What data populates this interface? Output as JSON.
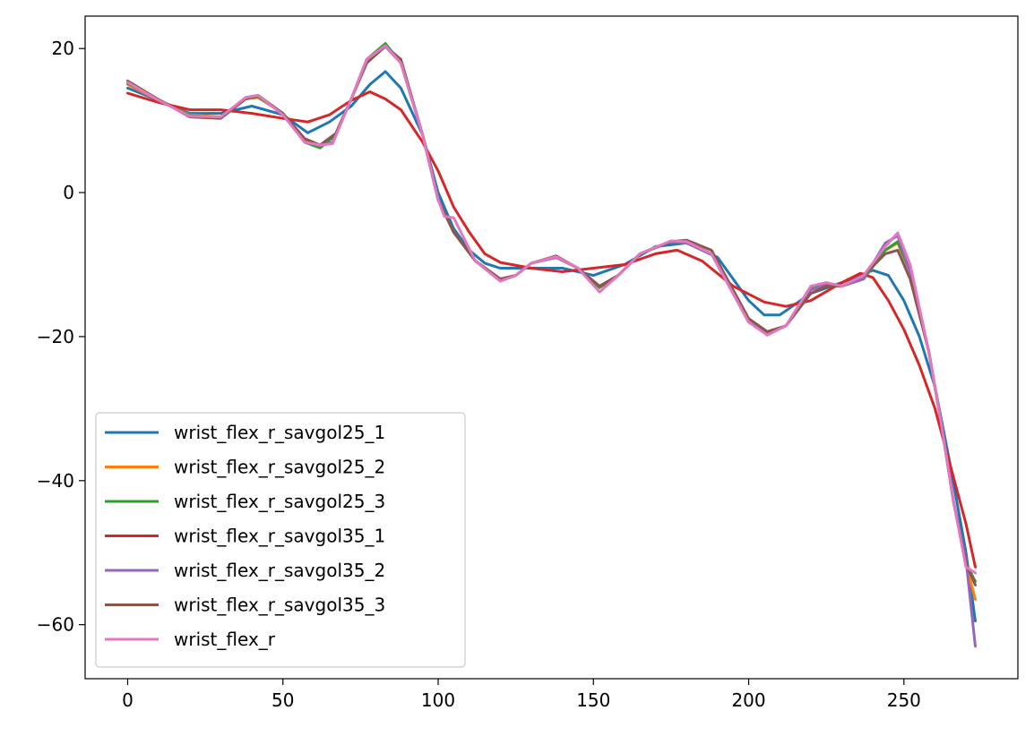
{
  "chart_data": {
    "type": "line",
    "title": "",
    "xlabel": "",
    "ylabel": "",
    "xlim": [
      -13.7,
      286.7
    ],
    "ylim": [
      -67.5,
      24.5
    ],
    "xticks": [
      0,
      50,
      100,
      150,
      200,
      250
    ],
    "yticks": [
      20,
      0,
      -20,
      -40,
      -60
    ],
    "ytick_labels": [
      "20",
      "0",
      "−20",
      "−40",
      "−60"
    ],
    "legend_position": "lower-left",
    "grid": false,
    "series": [
      {
        "name": "wrist_flex_r_savgol25_1",
        "color": "#1f77b4",
        "points": [
          [
            0,
            14.5
          ],
          [
            10,
            12.8
          ],
          [
            20,
            11.0
          ],
          [
            30,
            11.0
          ],
          [
            40,
            12.0
          ],
          [
            50,
            10.8
          ],
          [
            58,
            8.3
          ],
          [
            65,
            9.8
          ],
          [
            72,
            12.0
          ],
          [
            78,
            15.0
          ],
          [
            83,
            16.8
          ],
          [
            88,
            14.5
          ],
          [
            95,
            8.0
          ],
          [
            100,
            0
          ],
          [
            105,
            -5.0
          ],
          [
            110,
            -8.0
          ],
          [
            115,
            -9.8
          ],
          [
            120,
            -10.5
          ],
          [
            130,
            -10.5
          ],
          [
            140,
            -10.5
          ],
          [
            150,
            -11.5
          ],
          [
            160,
            -10.0
          ],
          [
            170,
            -7.5
          ],
          [
            180,
            -7.0
          ],
          [
            190,
            -9.0
          ],
          [
            200,
            -15.0
          ],
          [
            205,
            -17.0
          ],
          [
            210,
            -17.0
          ],
          [
            220,
            -14.0
          ],
          [
            230,
            -12.5
          ],
          [
            240,
            -10.8
          ],
          [
            245,
            -11.5
          ],
          [
            250,
            -15.0
          ],
          [
            255,
            -20.0
          ],
          [
            260,
            -27.0
          ],
          [
            265,
            -38.0
          ],
          [
            270,
            -50.0
          ],
          [
            273,
            -59.5
          ]
        ]
      },
      {
        "name": "wrist_flex_r_savgol25_2",
        "color": "#ff7f0e",
        "points": [
          [
            0,
            15.0
          ],
          [
            10,
            12.8
          ],
          [
            20,
            10.8
          ],
          [
            30,
            10.5
          ],
          [
            38,
            13.0
          ],
          [
            42,
            13.2
          ],
          [
            50,
            11.0
          ],
          [
            57,
            7.0
          ],
          [
            62,
            6.4
          ],
          [
            67,
            8.0
          ],
          [
            72,
            13.0
          ],
          [
            77,
            18.0
          ],
          [
            83,
            20.5
          ],
          [
            88,
            18.0
          ],
          [
            95,
            8.0
          ],
          [
            100,
            -1.0
          ],
          [
            105,
            -5.5
          ],
          [
            112,
            -9.5
          ],
          [
            120,
            -12.0
          ],
          [
            125,
            -11.5
          ],
          [
            130,
            -9.8
          ],
          [
            138,
            -9.0
          ],
          [
            145,
            -10.5
          ],
          [
            152,
            -13.0
          ],
          [
            158,
            -11.5
          ],
          [
            165,
            -8.5
          ],
          [
            175,
            -6.8
          ],
          [
            180,
            -7.0
          ],
          [
            188,
            -8.5
          ],
          [
            195,
            -14.0
          ],
          [
            200,
            -18.0
          ],
          [
            206,
            -19.5
          ],
          [
            212,
            -18.5
          ],
          [
            220,
            -13.5
          ],
          [
            225,
            -12.8
          ],
          [
            230,
            -13.0
          ],
          [
            237,
            -12.0
          ],
          [
            244,
            -8.0
          ],
          [
            248,
            -7.0
          ],
          [
            252,
            -11.0
          ],
          [
            258,
            -22.0
          ],
          [
            262,
            -32.0
          ],
          [
            266,
            -43.0
          ],
          [
            270,
            -51.5
          ],
          [
            273,
            -56.5
          ]
        ]
      },
      {
        "name": "wrist_flex_r_savgol25_3",
        "color": "#2ca02c",
        "points": [
          [
            0,
            15.2
          ],
          [
            10,
            12.9
          ],
          [
            20,
            10.7
          ],
          [
            30,
            10.4
          ],
          [
            38,
            13.1
          ],
          [
            42,
            13.3
          ],
          [
            50,
            11.0
          ],
          [
            57,
            7.0
          ],
          [
            62,
            6.2
          ],
          [
            67,
            8.0
          ],
          [
            72,
            13.0
          ],
          [
            77,
            18.5
          ],
          [
            83,
            20.7
          ],
          [
            88,
            18.0
          ],
          [
            95,
            8.0
          ],
          [
            100,
            -1.0
          ],
          [
            105,
            -5.5
          ],
          [
            112,
            -9.5
          ],
          [
            120,
            -12.3
          ],
          [
            125,
            -11.5
          ],
          [
            130,
            -9.8
          ],
          [
            138,
            -9.0
          ],
          [
            145,
            -10.5
          ],
          [
            152,
            -13.2
          ],
          [
            158,
            -11.5
          ],
          [
            165,
            -8.5
          ],
          [
            175,
            -6.8
          ],
          [
            180,
            -7.0
          ],
          [
            188,
            -8.5
          ],
          [
            195,
            -14.0
          ],
          [
            200,
            -18.0
          ],
          [
            206,
            -19.7
          ],
          [
            212,
            -18.5
          ],
          [
            220,
            -13.3
          ],
          [
            225,
            -12.8
          ],
          [
            230,
            -13.0
          ],
          [
            237,
            -12.0
          ],
          [
            244,
            -8.0
          ],
          [
            248,
            -6.8
          ],
          [
            252,
            -11.0
          ],
          [
            258,
            -22.0
          ],
          [
            262,
            -32.0
          ],
          [
            266,
            -43.0
          ],
          [
            270,
            -51.5
          ],
          [
            273,
            -54.0
          ]
        ]
      },
      {
        "name": "wrist_flex_r_savgol35_1",
        "color": "#d62728",
        "points": [
          [
            0,
            13.8
          ],
          [
            10,
            12.5
          ],
          [
            20,
            11.5
          ],
          [
            30,
            11.5
          ],
          [
            40,
            11.0
          ],
          [
            50,
            10.3
          ],
          [
            58,
            9.8
          ],
          [
            65,
            10.8
          ],
          [
            72,
            12.8
          ],
          [
            78,
            14.0
          ],
          [
            83,
            13.0
          ],
          [
            88,
            11.5
          ],
          [
            95,
            7.0
          ],
          [
            100,
            3.0
          ],
          [
            105,
            -2.0
          ],
          [
            110,
            -5.5
          ],
          [
            115,
            -8.5
          ],
          [
            120,
            -9.7
          ],
          [
            130,
            -10.5
          ],
          [
            140,
            -11.0
          ],
          [
            150,
            -10.5
          ],
          [
            160,
            -10.0
          ],
          [
            170,
            -8.5
          ],
          [
            177,
            -8.0
          ],
          [
            185,
            -9.5
          ],
          [
            195,
            -13.0
          ],
          [
            205,
            -15.2
          ],
          [
            212,
            -15.8
          ],
          [
            220,
            -15.0
          ],
          [
            230,
            -12.5
          ],
          [
            236,
            -11.2
          ],
          [
            240,
            -11.8
          ],
          [
            245,
            -15.0
          ],
          [
            250,
            -19.0
          ],
          [
            255,
            -24.0
          ],
          [
            260,
            -30.0
          ],
          [
            265,
            -38.0
          ],
          [
            270,
            -46.0
          ],
          [
            273,
            -52.0
          ]
        ]
      },
      {
        "name": "wrist_flex_r_savgol35_2",
        "color": "#9467bd",
        "points": [
          [
            0,
            15.3
          ],
          [
            10,
            12.8
          ],
          [
            20,
            10.6
          ],
          [
            30,
            10.4
          ],
          [
            38,
            13.2
          ],
          [
            42,
            13.5
          ],
          [
            50,
            10.8
          ],
          [
            57,
            7.2
          ],
          [
            62,
            6.5
          ],
          [
            66,
            7.0
          ],
          [
            72,
            13.0
          ],
          [
            77,
            18.5
          ],
          [
            83,
            20.3
          ],
          [
            88,
            18.0
          ],
          [
            95,
            8.0
          ],
          [
            100,
            -1.0
          ],
          [
            105,
            -5.5
          ],
          [
            112,
            -9.5
          ],
          [
            120,
            -12.0
          ],
          [
            125,
            -11.5
          ],
          [
            130,
            -9.8
          ],
          [
            138,
            -9.0
          ],
          [
            145,
            -10.5
          ],
          [
            152,
            -13.0
          ],
          [
            158,
            -11.5
          ],
          [
            165,
            -8.5
          ],
          [
            175,
            -6.8
          ],
          [
            180,
            -7.0
          ],
          [
            188,
            -8.5
          ],
          [
            195,
            -14.0
          ],
          [
            200,
            -18.0
          ],
          [
            206,
            -19.5
          ],
          [
            212,
            -18.5
          ],
          [
            220,
            -13.5
          ],
          [
            225,
            -12.8
          ],
          [
            230,
            -13.0
          ],
          [
            237,
            -12.0
          ],
          [
            244,
            -7.0
          ],
          [
            248,
            -6.0
          ],
          [
            252,
            -11.0
          ],
          [
            258,
            -22.0
          ],
          [
            262,
            -32.0
          ],
          [
            266,
            -43.0
          ],
          [
            270,
            -51.0
          ],
          [
            273,
            -63.0
          ]
        ]
      },
      {
        "name": "wrist_flex_r_savgol35_3",
        "color": "#8c564b",
        "points": [
          [
            0,
            15.5
          ],
          [
            10,
            12.9
          ],
          [
            20,
            10.5
          ],
          [
            30,
            10.3
          ],
          [
            38,
            13.0
          ],
          [
            42,
            13.5
          ],
          [
            50,
            11.0
          ],
          [
            57,
            7.5
          ],
          [
            62,
            6.6
          ],
          [
            67,
            8.2
          ],
          [
            72,
            13.0
          ],
          [
            77,
            18.0
          ],
          [
            83,
            20.3
          ],
          [
            88,
            18.5
          ],
          [
            95,
            8.0
          ],
          [
            100,
            -1.0
          ],
          [
            105,
            -5.5
          ],
          [
            112,
            -9.5
          ],
          [
            120,
            -12.0
          ],
          [
            125,
            -11.5
          ],
          [
            130,
            -9.8
          ],
          [
            138,
            -8.8
          ],
          [
            145,
            -10.5
          ],
          [
            152,
            -13.0
          ],
          [
            158,
            -11.5
          ],
          [
            165,
            -8.5
          ],
          [
            175,
            -6.8
          ],
          [
            180,
            -6.6
          ],
          [
            188,
            -8.0
          ],
          [
            195,
            -13.5
          ],
          [
            200,
            -17.5
          ],
          [
            206,
            -19.3
          ],
          [
            212,
            -18.5
          ],
          [
            220,
            -14.0
          ],
          [
            225,
            -13.0
          ],
          [
            230,
            -13.0
          ],
          [
            237,
            -11.5
          ],
          [
            244,
            -8.5
          ],
          [
            248,
            -8.0
          ],
          [
            252,
            -12.0
          ],
          [
            258,
            -22.0
          ],
          [
            262,
            -32.0
          ],
          [
            266,
            -43.0
          ],
          [
            270,
            -51.5
          ],
          [
            273,
            -54.5
          ]
        ]
      },
      {
        "name": "wrist_flex_r",
        "color": "#e377c2",
        "points": [
          [
            0,
            15.3
          ],
          [
            10,
            12.8
          ],
          [
            20,
            10.6
          ],
          [
            30,
            10.5
          ],
          [
            38,
            13.2
          ],
          [
            42,
            13.5
          ],
          [
            50,
            10.8
          ],
          [
            57,
            7.0
          ],
          [
            62,
            6.6
          ],
          [
            66,
            6.8
          ],
          [
            72,
            13.0
          ],
          [
            77,
            18.5
          ],
          [
            83,
            20.4
          ],
          [
            88,
            18.0
          ],
          [
            95,
            8.0
          ],
          [
            100,
            -1.0
          ],
          [
            102,
            -3.3
          ],
          [
            105,
            -3.5
          ],
          [
            112,
            -9.5
          ],
          [
            120,
            -12.3
          ],
          [
            125,
            -11.5
          ],
          [
            130,
            -9.8
          ],
          [
            138,
            -8.9
          ],
          [
            145,
            -10.5
          ],
          [
            152,
            -13.8
          ],
          [
            158,
            -11.5
          ],
          [
            165,
            -8.5
          ],
          [
            175,
            -6.7
          ],
          [
            180,
            -6.8
          ],
          [
            188,
            -8.5
          ],
          [
            195,
            -14.0
          ],
          [
            200,
            -18.0
          ],
          [
            206,
            -19.8
          ],
          [
            212,
            -18.5
          ],
          [
            220,
            -13.0
          ],
          [
            225,
            -12.5
          ],
          [
            230,
            -13.0
          ],
          [
            237,
            -11.5
          ],
          [
            244,
            -7.5
          ],
          [
            248,
            -5.6
          ],
          [
            252,
            -10.0
          ],
          [
            258,
            -22.0
          ],
          [
            262,
            -32.0
          ],
          [
            266,
            -43.0
          ],
          [
            270,
            -52.0
          ],
          [
            273,
            -52.8
          ]
        ]
      }
    ]
  }
}
